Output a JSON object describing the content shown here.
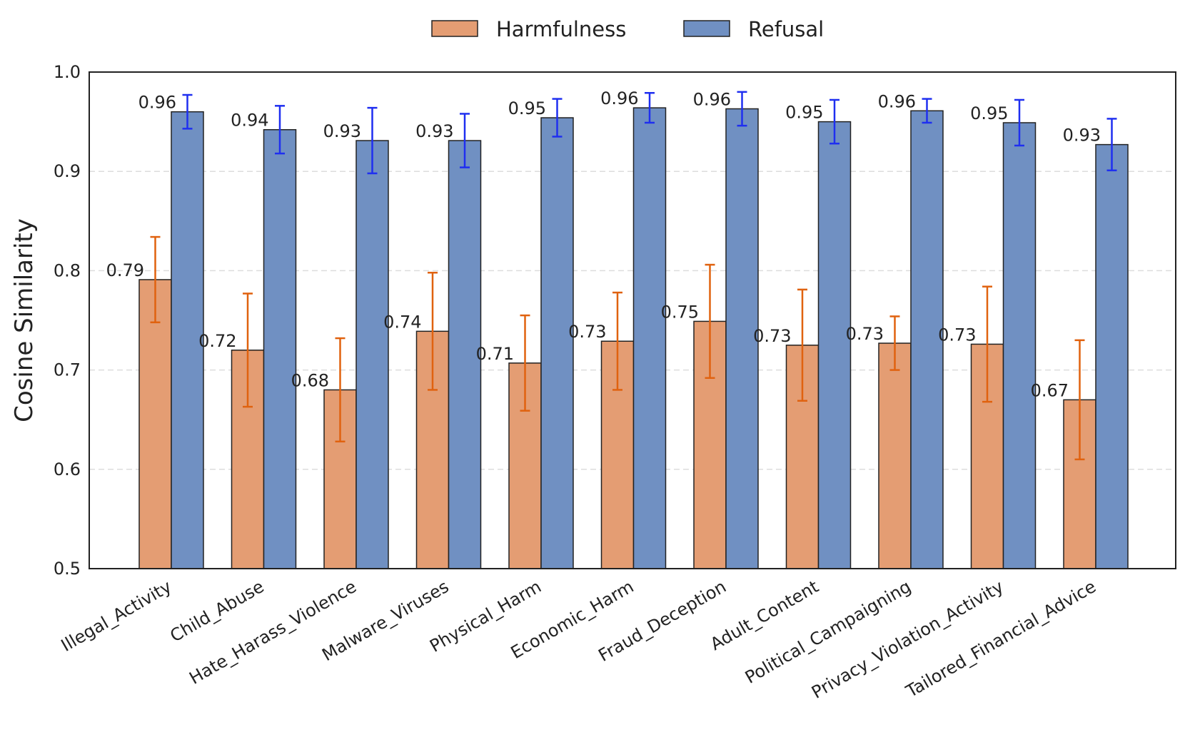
{
  "chart_data": {
    "type": "bar",
    "title": "",
    "xlabel": "",
    "ylabel": "Cosine Similarity",
    "ylim": [
      0.5,
      1.0
    ],
    "yticks": [
      "0.5",
      "0.6",
      "0.7",
      "0.8",
      "0.9",
      "1.0"
    ],
    "grid": "horizontal dashed",
    "legend_position": "top-center",
    "categories": [
      "Illegal_Activity",
      "Child_Abuse",
      "Hate_Harass_Violence",
      "Malware_Viruses",
      "Physical_Harm",
      "Economic_Harm",
      "Fraud_Deception",
      "Adult_Content",
      "Political_Campaigning",
      "Privacy_Violation_Activity",
      "Tailored_Financial_Advice"
    ],
    "series": [
      {
        "name": "Harmfulness",
        "color": "#e49d73",
        "error_color": "#e0620f",
        "values": [
          0.791,
          0.72,
          0.68,
          0.739,
          0.707,
          0.729,
          0.749,
          0.725,
          0.727,
          0.726,
          0.67
        ],
        "errors": [
          0.043,
          0.057,
          0.052,
          0.059,
          0.048,
          0.049,
          0.057,
          0.056,
          0.027,
          0.058,
          0.06
        ],
        "labels": [
          "0.79",
          "0.72",
          "0.68",
          "0.74",
          "0.71",
          "0.73",
          "0.75",
          "0.73",
          "0.73",
          "0.73",
          "0.67"
        ]
      },
      {
        "name": "Refusal",
        "color": "#7090c2",
        "error_color": "#1f2ff0",
        "values": [
          0.96,
          0.942,
          0.931,
          0.931,
          0.954,
          0.964,
          0.963,
          0.95,
          0.961,
          0.949,
          0.927
        ],
        "errors": [
          0.017,
          0.024,
          0.033,
          0.027,
          0.019,
          0.015,
          0.017,
          0.022,
          0.012,
          0.023,
          0.026
        ],
        "labels": [
          "0.96",
          "0.94",
          "0.93",
          "0.93",
          "0.95",
          "0.96",
          "0.96",
          "0.95",
          "0.96",
          "0.95",
          "0.93"
        ]
      }
    ]
  }
}
